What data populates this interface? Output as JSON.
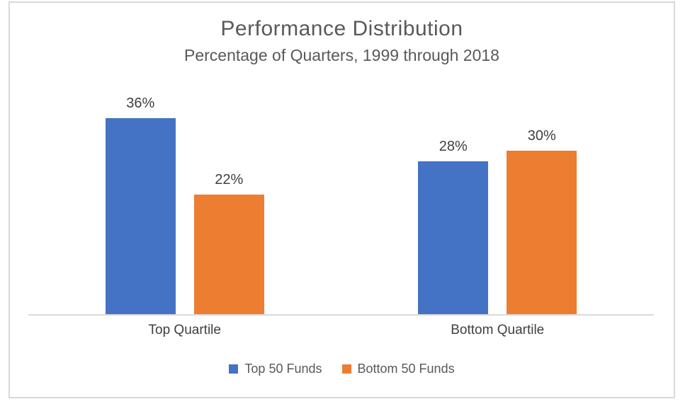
{
  "chart_data": {
    "type": "bar",
    "title": "Performance Distribution",
    "subtitle": "Percentage of Quarters, 1999 through 2018",
    "categories": [
      "Top Quartile",
      "Bottom Quartile"
    ],
    "series": [
      {
        "name": "Top 50 Funds",
        "color": "#4472C4",
        "values": [
          36,
          28
        ],
        "labels": [
          "36%",
          "28%"
        ]
      },
      {
        "name": "Bottom 50 Funds",
        "color": "#ED7D31",
        "values": [
          22,
          30
        ],
        "labels": [
          "22%",
          "30%"
        ]
      }
    ],
    "value_unit": "%",
    "ylim": [
      0,
      39
    ],
    "grid": false,
    "data_labels": true,
    "legend_position": "bottom",
    "colors": {
      "title_text": "#595959",
      "label_text": "#404040",
      "axis_line": "#D9D9D9",
      "frame_border": "#D9D9D9",
      "background": "#FFFFFF"
    }
  }
}
